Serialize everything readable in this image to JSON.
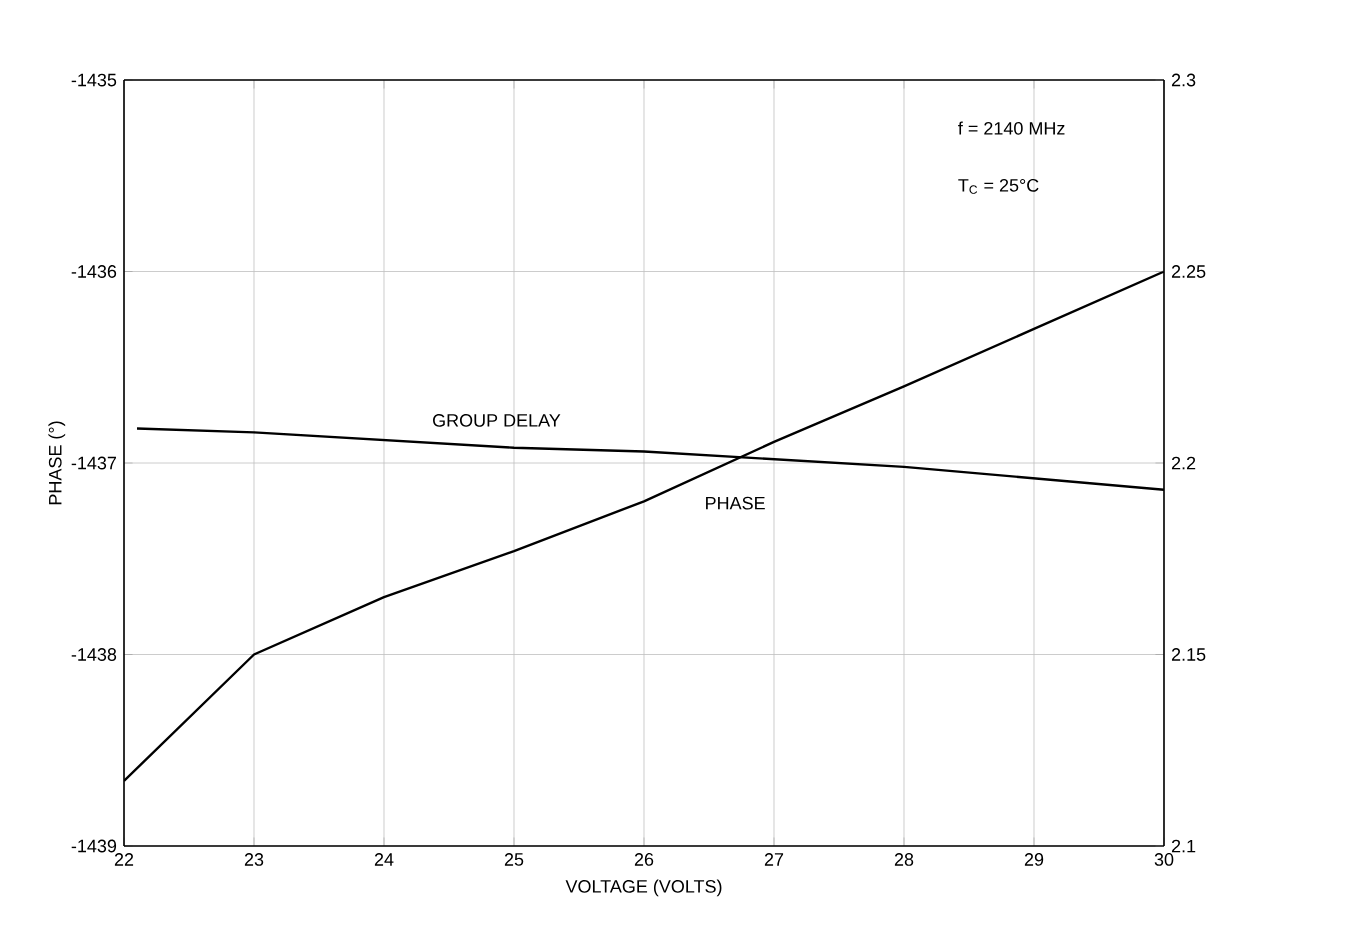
{
  "chart_data": {
    "type": "line",
    "xlabel": "VOLTAGE (VOLTS)",
    "ylabel": "PHASE (°)",
    "annotations": [
      "f = 2140 MHz",
      "T$_{C}$ = 25°C"
    ],
    "xlim": [
      22,
      30
    ],
    "xticks": [
      22,
      23,
      24,
      25,
      26,
      27,
      28,
      29,
      30
    ],
    "ylim": [
      -1439,
      -1435
    ],
    "yticks": [
      -1439,
      -1438,
      -1437,
      -1436,
      -1435
    ],
    "y2lim": [
      2.1,
      2.3
    ],
    "y2ticks": [
      2.1,
      2.15,
      2.2,
      2.25,
      2.3
    ],
    "grid": true,
    "line_style": "solid",
    "marker": "none",
    "series": [
      {
        "name": "PHASE",
        "color": "#000000",
        "x": [
          22,
          23,
          24,
          25,
          26,
          27,
          28,
          29,
          30
        ],
        "values": [
          -1438.66,
          -1438.0,
          -1437.7,
          -1437.46,
          -1437.2,
          -1436.89,
          -1436.6,
          -1436.3,
          -1436.0
        ]
      },
      {
        "name": "GROUP DELAY",
        "color": "#000000",
        "axis": "y2",
        "x": [
          22.1,
          23,
          24,
          25,
          26,
          27,
          28,
          29,
          30
        ],
        "values": [
          2.209,
          2.208,
          2.206,
          2.204,
          2.203,
          2.201,
          2.199,
          2.196,
          2.193
        ]
      }
    ]
  }
}
